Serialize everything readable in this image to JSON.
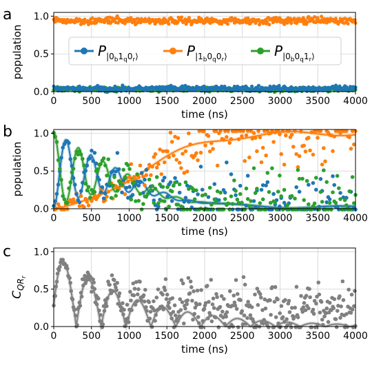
{
  "figure": {
    "panel_labels": [
      "a",
      "b",
      "c"
    ]
  },
  "chart_data": [
    {
      "type": "scatter",
      "panel": "a",
      "xlabel": "time (ns)",
      "ylabel": "population",
      "xlim": [
        0,
        4000
      ],
      "ylim": [
        0,
        1.05
      ],
      "xticks": [
        0,
        500,
        1000,
        1500,
        2000,
        2500,
        3000,
        3500,
        4000
      ],
      "yticks": [
        0.0,
        0.5,
        1.0
      ],
      "grid": true,
      "legend": {
        "placement": "center",
        "entries": [
          {
            "prefix": "P",
            "label": "|0b1q0r⟩",
            "sub": [
              "|0",
              "b",
              "1",
              "q",
              "0",
              "r",
              "⟩"
            ],
            "color": "#1f77b4"
          },
          {
            "prefix": "P",
            "label": "|1b0q0r⟩",
            "sub": [
              "|1",
              "b",
              "0",
              "q",
              "0",
              "r",
              "⟩"
            ],
            "color": "#ff7f0e"
          },
          {
            "prefix": "P",
            "label": "|0b0q1r⟩",
            "sub": [
              "|0",
              "b",
              "0",
              "q",
              "1",
              "r",
              "⟩"
            ],
            "color": "#2ca02c"
          }
        ]
      },
      "series": [
        {
          "name": "|0b1q0r⟩",
          "color": "#1f77b4",
          "level": 0.04,
          "spread": 0.03
        },
        {
          "name": "|1b0q0r⟩",
          "color": "#ff7f0e",
          "level": 0.94,
          "spread": 0.04
        },
        {
          "name": "|0b0q1r⟩",
          "color": "#2ca02c",
          "level": 0.03,
          "spread": 0.025
        }
      ],
      "n_points": 400
    },
    {
      "type": "scatter",
      "panel": "b",
      "xlabel": "time (ns)",
      "ylabel": "population",
      "xlim": [
        0,
        4000
      ],
      "ylim": [
        0,
        1.05
      ],
      "xticks": [
        0,
        500,
        1000,
        1500,
        2000,
        2500,
        3000,
        3500,
        4000
      ],
      "yticks": [
        0.0,
        0.5,
        1.0
      ],
      "grid": true,
      "oscillation_period_ns": 330,
      "decay_ns": 1000,
      "rise_ns": 1400,
      "series": [
        {
          "name": "|0b1q0r⟩",
          "color": "#1f77b4",
          "fit": true
        },
        {
          "name": "|1b0q0r⟩",
          "color": "#ff7f0e",
          "fit": true
        },
        {
          "name": "|0b0q1r⟩",
          "color": "#2ca02c",
          "fit": true
        }
      ],
      "n_points": 200
    },
    {
      "type": "scatter",
      "panel": "c",
      "xlabel": "time (ns)",
      "ylabel_main": "C",
      "ylabel_sub": "QR",
      "ylabel_subsub": "r",
      "xlim": [
        0,
        4000
      ],
      "ylim": [
        0,
        1.05
      ],
      "xticks": [
        0,
        500,
        1000,
        1500,
        2000,
        2500,
        3000,
        3500,
        4000
      ],
      "yticks": [
        0.0,
        0.5,
        1.0
      ],
      "grid": true,
      "series": [
        {
          "name": "C_QRr",
          "color": "#808080",
          "fit": true
        }
      ],
      "n_points": 400
    }
  ]
}
